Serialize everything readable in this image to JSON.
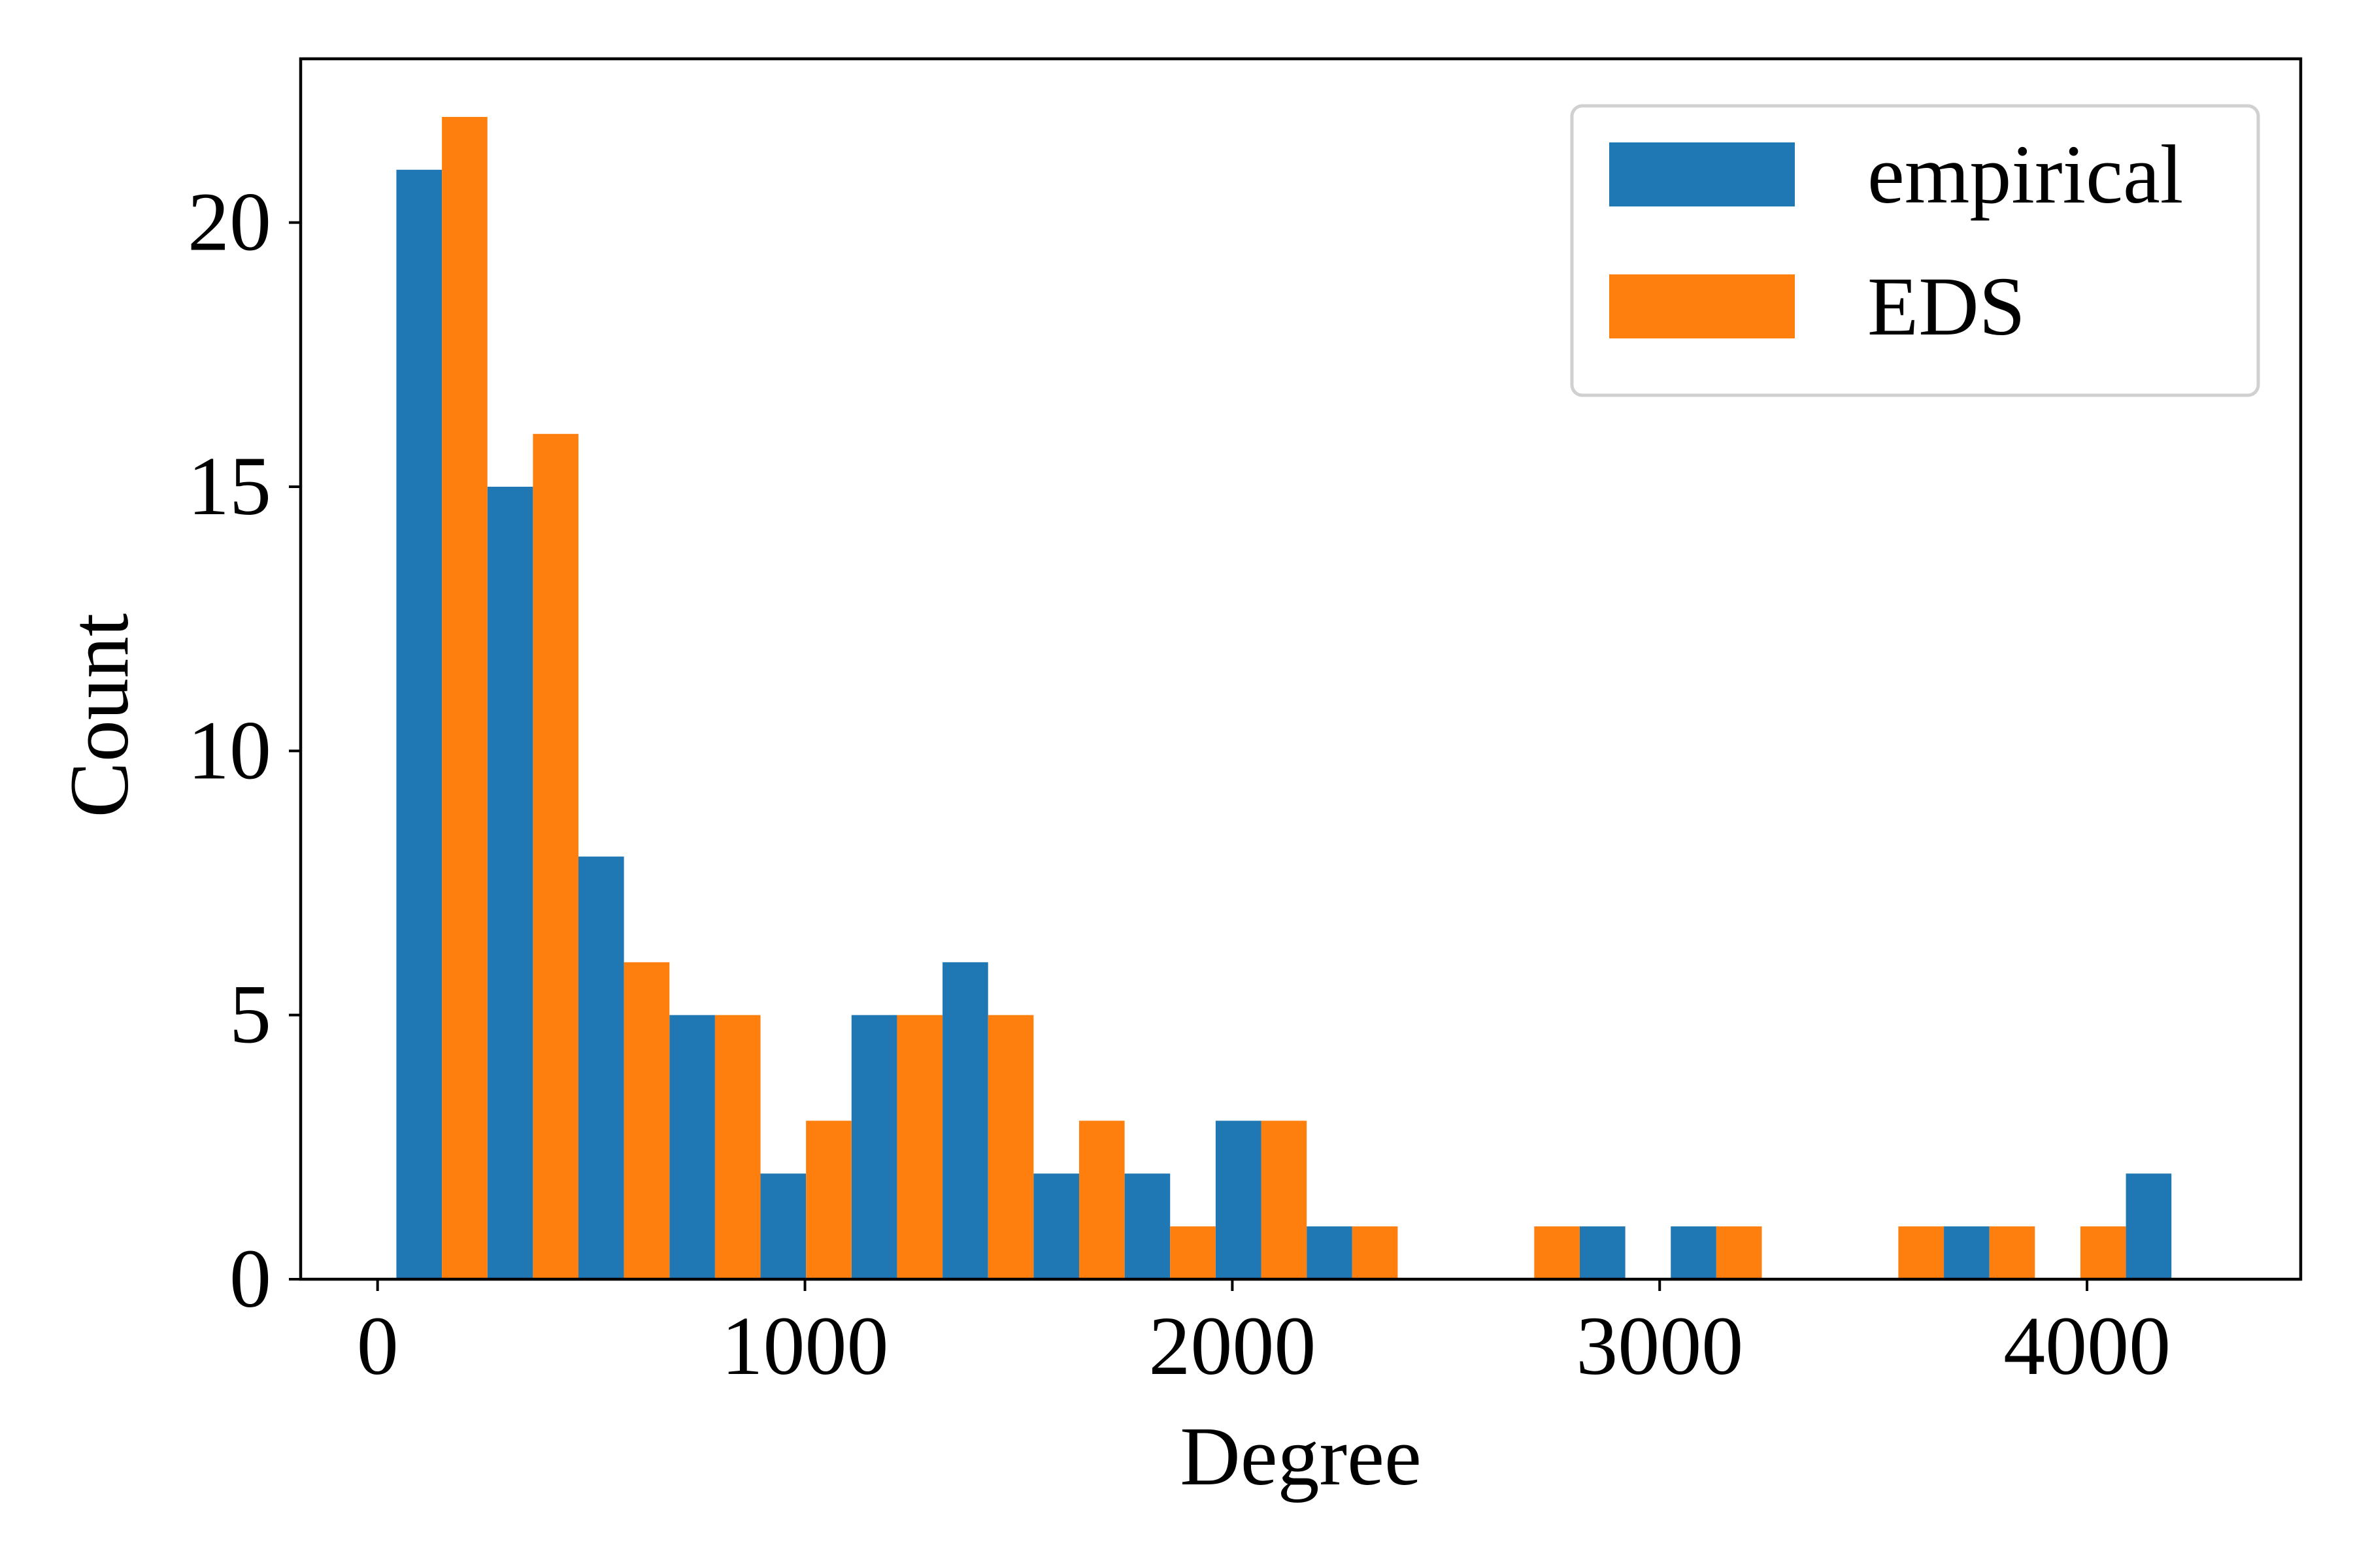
{
  "chart_data": {
    "type": "bar",
    "title": "",
    "xlabel": "Degree",
    "ylabel": "Count",
    "xlim": [
      -180,
      4500
    ],
    "ylim": [
      0,
      23.1
    ],
    "grid": false,
    "legend_position": "top-right",
    "x_ticks": [
      0,
      1000,
      2000,
      3000,
      4000
    ],
    "x_tick_labels": [
      "0",
      "1000",
      "2000",
      "3000",
      "4000"
    ],
    "y_ticks": [
      0,
      5,
      10,
      15,
      20
    ],
    "y_tick_labels": [
      "0",
      "5",
      "10",
      "15",
      "20"
    ],
    "bin_edges": [
      44,
      257,
      470,
      683,
      896,
      1109,
      1322,
      1535,
      1748,
      1961,
      2174,
      2387,
      2600,
      2813,
      3026,
      3239,
      3452,
      3665,
      3878,
      4091,
      4304
    ],
    "series": [
      {
        "name": "empirical",
        "color": "#1f77b4",
        "values": [
          21,
          15,
          8,
          5,
          2,
          5,
          6,
          2,
          2,
          3,
          1,
          0,
          0,
          1,
          1,
          0,
          0,
          1,
          0,
          2
        ]
      },
      {
        "name": "EDS",
        "color": "#ff7f0e",
        "values": [
          22,
          16,
          6,
          5,
          3,
          5,
          5,
          3,
          1,
          3,
          1,
          0,
          1,
          0,
          1,
          0,
          1,
          1,
          1,
          0
        ]
      }
    ]
  }
}
